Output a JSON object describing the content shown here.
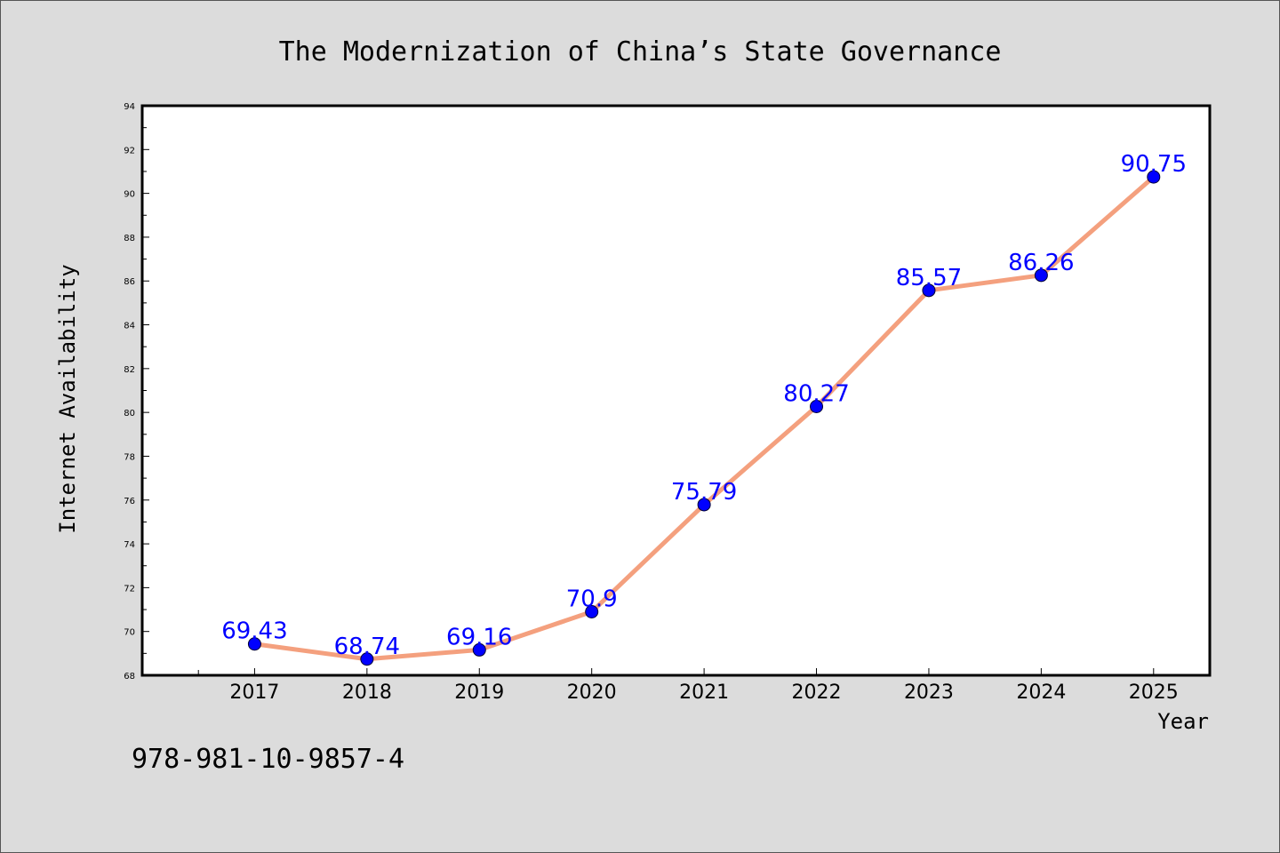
{
  "chart_data": {
    "type": "line",
    "title": "The Modernization of China’s State Governance",
    "xlabel": "Year",
    "ylabel": "Internet Availability",
    "categories": [
      "2017",
      "2018",
      "2019",
      "2020",
      "2021",
      "2022",
      "2023",
      "2024",
      "2025"
    ],
    "values": [
      69.43,
      68.74,
      69.16,
      70.9,
      75.79,
      80.27,
      85.57,
      86.26,
      90.75
    ],
    "value_labels": [
      "69.43",
      "68.74",
      "69.16",
      "70.9",
      "75.79",
      "80.27",
      "85.57",
      "86.26",
      "90.75"
    ],
    "ylim": [
      68,
      94
    ],
    "yticks": [
      68,
      70,
      72,
      74,
      76,
      78,
      80,
      82,
      84,
      86,
      88,
      90,
      92,
      94
    ],
    "xlim": [
      2016,
      2025.5
    ],
    "grid": false,
    "line_color": "#f4a07e",
    "marker_color": "#0000ff",
    "label_color": "#0000ff"
  },
  "footer": {
    "isbn": "978-981-10-9857-4"
  }
}
